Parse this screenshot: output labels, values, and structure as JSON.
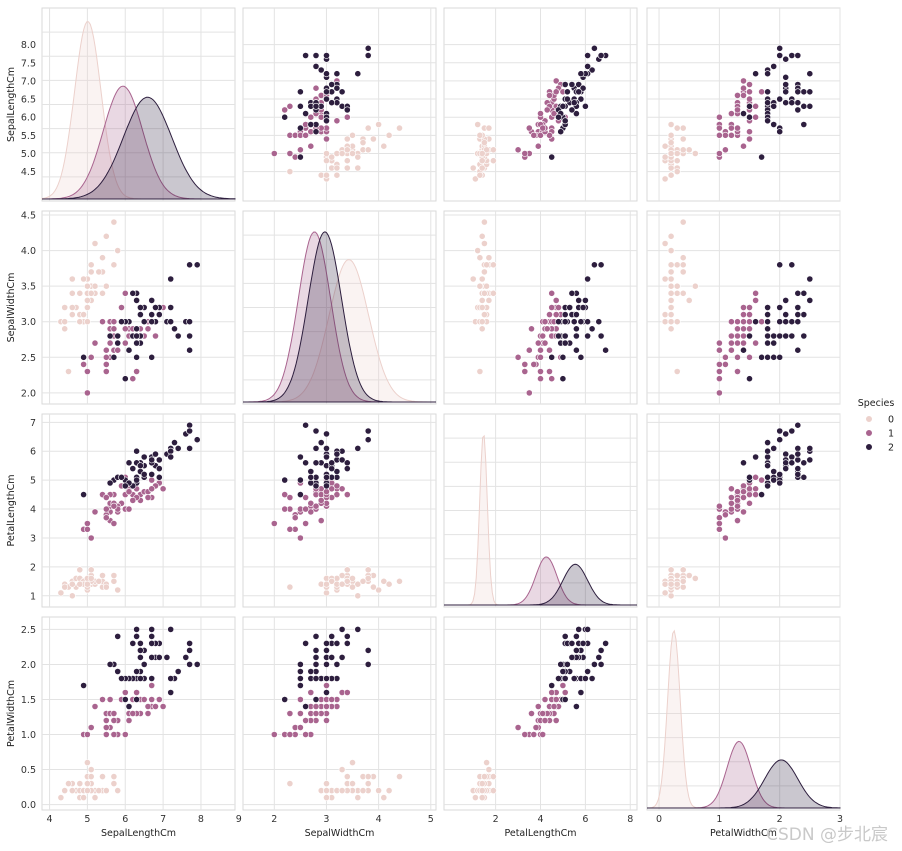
{
  "chart_data": {
    "type": "pairplot",
    "variables": [
      "SepalLengthCm",
      "SepalWidthCm",
      "PetalLengthCm",
      "PetalWidthCm"
    ],
    "diagonal": "kde",
    "offdiagonal": "scatter",
    "grid": true,
    "legend": {
      "title": "Species",
      "placement": "right",
      "entries": [
        "0",
        "1",
        "2"
      ]
    },
    "colors": {
      "0": "#ecd1cc",
      "1": "#a9648f",
      "2": "#2d1e3e"
    },
    "axes": {
      "SepalLengthCm": {
        "range": [
          3.8,
          8.9
        ],
        "ticks": [
          "4.5",
          "5.0",
          "5.5",
          "6.0",
          "6.5",
          "7.0",
          "7.5",
          "8.0"
        ],
        "tick_values": [
          4.5,
          5.0,
          5.5,
          6.0,
          6.5,
          7.0,
          7.5,
          8.0
        ],
        "xticks": [
          "4",
          "5",
          "6",
          "7",
          "8",
          "9"
        ],
        "xtick_values": [
          4,
          5,
          6,
          7,
          8,
          9
        ]
      },
      "SepalWidthCm": {
        "range": [
          1.9,
          4.5
        ],
        "ticks": [
          "2.0",
          "2.5",
          "3.0",
          "3.5",
          "4.0",
          "4.5"
        ],
        "tick_values": [
          2.0,
          2.5,
          3.0,
          3.5,
          4.0,
          4.5
        ],
        "xrange": [
          1.4,
          5.1
        ],
        "xticks": [
          "2",
          "3",
          "4",
          "5"
        ],
        "xtick_values": [
          2,
          3,
          4,
          5
        ]
      },
      "PetalLengthCm": {
        "range": [
          0.75,
          7.15
        ],
        "ticks": [
          "1",
          "2",
          "3",
          "4",
          "5",
          "6",
          "7"
        ],
        "tick_values": [
          1,
          2,
          3,
          4,
          5,
          6,
          7
        ],
        "xrange": [
          -0.3,
          8.3
        ],
        "xticks": [
          "2",
          "4",
          "6",
          "8"
        ],
        "xtick_values": [
          2,
          4,
          6,
          8
        ]
      },
      "PetalWidthCm": {
        "range": [
          -0.02,
          2.62
        ],
        "ticks": [
          "0.0",
          "0.5",
          "1.0",
          "1.5",
          "2.0",
          "2.5"
        ],
        "tick_values": [
          0.0,
          0.5,
          1.0,
          1.5,
          2.0,
          2.5
        ],
        "xrange": [
          -0.2,
          3.0
        ],
        "xticks": [
          "0",
          "1",
          "2",
          "3"
        ],
        "xtick_values": [
          0,
          1,
          2,
          3
        ]
      }
    },
    "kde": {
      "SepalLengthCm": [
        {
          "species": "0",
          "mean": 5.01,
          "sd": 0.35,
          "peak_rel": 0.96
        },
        {
          "species": "1",
          "mean": 5.94,
          "sd": 0.52,
          "peak_rel": 0.61
        },
        {
          "species": "2",
          "mean": 6.59,
          "sd": 0.64,
          "peak_rel": 0.55
        }
      ],
      "SepalWidthCm": [
        {
          "species": "0",
          "mean": 3.43,
          "sd": 0.38,
          "peak_rel": 0.77
        },
        {
          "species": "1",
          "mean": 2.77,
          "sd": 0.31,
          "peak_rel": 0.92
        },
        {
          "species": "2",
          "mean": 2.97,
          "sd": 0.32,
          "peak_rel": 0.92
        }
      ],
      "PetalLengthCm": [
        {
          "species": "0",
          "mean": 1.46,
          "sd": 0.17,
          "peak_rel": 0.93
        },
        {
          "species": "1",
          "mean": 4.26,
          "sd": 0.47,
          "peak_rel": 0.26
        },
        {
          "species": "2",
          "mean": 5.55,
          "sd": 0.55,
          "peak_rel": 0.22
        }
      ],
      "PetalWidthCm": [
        {
          "species": "0",
          "mean": 0.246,
          "sd": 0.105,
          "peak_rel": 0.96
        },
        {
          "species": "1",
          "mean": 1.326,
          "sd": 0.198,
          "peak_rel": 0.36
        },
        {
          "species": "2",
          "mean": 2.026,
          "sd": 0.274,
          "peak_rel": 0.26
        }
      ]
    },
    "points": {
      "0": [
        [
          5.1,
          3.5,
          1.4,
          0.2
        ],
        [
          4.9,
          3.0,
          1.4,
          0.2
        ],
        [
          4.7,
          3.2,
          1.3,
          0.2
        ],
        [
          4.6,
          3.1,
          1.5,
          0.2
        ],
        [
          5.0,
          3.6,
          1.4,
          0.2
        ],
        [
          5.4,
          3.9,
          1.7,
          0.4
        ],
        [
          4.6,
          3.4,
          1.4,
          0.3
        ],
        [
          5.0,
          3.4,
          1.5,
          0.2
        ],
        [
          4.4,
          2.9,
          1.4,
          0.2
        ],
        [
          4.9,
          3.1,
          1.5,
          0.1
        ],
        [
          5.4,
          3.7,
          1.5,
          0.2
        ],
        [
          4.8,
          3.4,
          1.6,
          0.2
        ],
        [
          4.8,
          3.0,
          1.4,
          0.1
        ],
        [
          4.3,
          3.0,
          1.1,
          0.1
        ],
        [
          5.8,
          4.0,
          1.2,
          0.2
        ],
        [
          5.7,
          4.4,
          1.5,
          0.4
        ],
        [
          5.4,
          3.9,
          1.3,
          0.4
        ],
        [
          5.1,
          3.5,
          1.4,
          0.3
        ],
        [
          5.7,
          3.8,
          1.7,
          0.3
        ],
        [
          5.1,
          3.8,
          1.5,
          0.3
        ],
        [
          5.4,
          3.4,
          1.7,
          0.2
        ],
        [
          5.1,
          3.7,
          1.5,
          0.4
        ],
        [
          4.6,
          3.6,
          1.0,
          0.2
        ],
        [
          5.1,
          3.3,
          1.7,
          0.5
        ],
        [
          4.8,
          3.4,
          1.9,
          0.2
        ],
        [
          5.0,
          3.0,
          1.6,
          0.2
        ],
        [
          5.0,
          3.4,
          1.6,
          0.4
        ],
        [
          5.2,
          3.5,
          1.5,
          0.2
        ],
        [
          5.2,
          3.4,
          1.4,
          0.2
        ],
        [
          4.7,
          3.2,
          1.6,
          0.2
        ],
        [
          4.8,
          3.1,
          1.6,
          0.2
        ],
        [
          5.4,
          3.4,
          1.5,
          0.4
        ],
        [
          5.2,
          4.1,
          1.5,
          0.1
        ],
        [
          5.5,
          4.2,
          1.4,
          0.2
        ],
        [
          4.9,
          3.1,
          1.5,
          0.2
        ],
        [
          5.0,
          3.2,
          1.2,
          0.2
        ],
        [
          5.5,
          3.5,
          1.3,
          0.2
        ],
        [
          4.9,
          3.6,
          1.4,
          0.1
        ],
        [
          4.4,
          3.0,
          1.3,
          0.2
        ],
        [
          5.1,
          3.4,
          1.5,
          0.2
        ],
        [
          5.0,
          3.5,
          1.3,
          0.3
        ],
        [
          4.5,
          2.3,
          1.3,
          0.3
        ],
        [
          4.4,
          3.2,
          1.3,
          0.2
        ],
        [
          5.0,
          3.5,
          1.6,
          0.6
        ],
        [
          5.1,
          3.8,
          1.9,
          0.4
        ],
        [
          4.8,
          3.0,
          1.4,
          0.3
        ],
        [
          5.1,
          3.8,
          1.6,
          0.2
        ],
        [
          4.6,
          3.2,
          1.4,
          0.2
        ],
        [
          5.3,
          3.7,
          1.5,
          0.2
        ],
        [
          5.0,
          3.3,
          1.4,
          0.2
        ]
      ],
      "1": [
        [
          7.0,
          3.2,
          4.7,
          1.4
        ],
        [
          6.4,
          3.2,
          4.5,
          1.5
        ],
        [
          6.9,
          3.1,
          4.9,
          1.5
        ],
        [
          5.5,
          2.3,
          4.0,
          1.3
        ],
        [
          6.5,
          2.8,
          4.6,
          1.5
        ],
        [
          5.7,
          2.8,
          4.5,
          1.3
        ],
        [
          6.3,
          3.3,
          4.7,
          1.6
        ],
        [
          4.9,
          2.4,
          3.3,
          1.0
        ],
        [
          6.6,
          2.9,
          4.6,
          1.3
        ],
        [
          5.2,
          2.7,
          3.9,
          1.4
        ],
        [
          5.0,
          2.0,
          3.5,
          1.0
        ],
        [
          5.9,
          3.0,
          4.2,
          1.5
        ],
        [
          6.0,
          2.2,
          4.0,
          1.0
        ],
        [
          6.1,
          2.9,
          4.7,
          1.4
        ],
        [
          5.6,
          2.9,
          3.6,
          1.3
        ],
        [
          6.7,
          3.1,
          4.4,
          1.4
        ],
        [
          5.6,
          3.0,
          4.5,
          1.5
        ],
        [
          5.8,
          2.7,
          4.1,
          1.0
        ],
        [
          6.2,
          2.2,
          4.5,
          1.5
        ],
        [
          5.6,
          2.5,
          3.9,
          1.1
        ],
        [
          5.9,
          3.2,
          4.8,
          1.8
        ],
        [
          6.1,
          2.8,
          4.0,
          1.3
        ],
        [
          6.3,
          2.5,
          4.9,
          1.5
        ],
        [
          6.1,
          2.8,
          4.7,
          1.2
        ],
        [
          6.4,
          2.9,
          4.3,
          1.3
        ],
        [
          6.6,
          3.0,
          4.4,
          1.4
        ],
        [
          6.8,
          2.8,
          4.8,
          1.4
        ],
        [
          6.7,
          3.0,
          5.0,
          1.7
        ],
        [
          6.0,
          2.9,
          4.5,
          1.5
        ],
        [
          5.7,
          2.6,
          3.5,
          1.0
        ],
        [
          5.5,
          2.4,
          3.8,
          1.1
        ],
        [
          5.5,
          2.4,
          3.7,
          1.0
        ],
        [
          5.8,
          2.7,
          3.9,
          1.2
        ],
        [
          6.0,
          2.7,
          5.1,
          1.6
        ],
        [
          5.4,
          3.0,
          4.5,
          1.5
        ],
        [
          6.0,
          3.4,
          4.5,
          1.6
        ],
        [
          6.7,
          3.1,
          4.7,
          1.5
        ],
        [
          6.3,
          2.3,
          4.4,
          1.3
        ],
        [
          5.6,
          3.0,
          4.1,
          1.3
        ],
        [
          5.5,
          2.5,
          4.0,
          1.3
        ],
        [
          5.5,
          2.6,
          4.4,
          1.2
        ],
        [
          6.1,
          3.0,
          4.6,
          1.4
        ],
        [
          5.8,
          2.6,
          4.0,
          1.2
        ],
        [
          5.0,
          2.3,
          3.3,
          1.0
        ],
        [
          5.6,
          2.7,
          4.2,
          1.3
        ],
        [
          5.7,
          3.0,
          4.2,
          1.2
        ],
        [
          5.7,
          2.9,
          4.2,
          1.3
        ],
        [
          6.2,
          2.9,
          4.3,
          1.3
        ],
        [
          5.1,
          2.5,
          3.0,
          1.1
        ],
        [
          5.7,
          2.8,
          4.1,
          1.3
        ]
      ],
      "2": [
        [
          6.3,
          3.3,
          6.0,
          2.5
        ],
        [
          5.8,
          2.7,
          5.1,
          1.9
        ],
        [
          7.1,
          3.0,
          5.9,
          2.1
        ],
        [
          6.3,
          2.9,
          5.6,
          1.8
        ],
        [
          6.5,
          3.0,
          5.8,
          2.2
        ],
        [
          7.6,
          3.0,
          6.6,
          2.1
        ],
        [
          4.9,
          2.5,
          4.5,
          1.7
        ],
        [
          7.3,
          2.9,
          6.3,
          1.8
        ],
        [
          6.7,
          2.5,
          5.8,
          1.8
        ],
        [
          7.2,
          3.6,
          6.1,
          2.5
        ],
        [
          6.5,
          3.2,
          5.1,
          2.0
        ],
        [
          6.4,
          2.7,
          5.3,
          1.9
        ],
        [
          6.8,
          3.0,
          5.5,
          2.1
        ],
        [
          5.7,
          2.5,
          5.0,
          2.0
        ],
        [
          5.8,
          2.8,
          5.1,
          2.4
        ],
        [
          6.4,
          3.2,
          5.3,
          2.3
        ],
        [
          6.5,
          3.0,
          5.5,
          1.8
        ],
        [
          7.7,
          3.8,
          6.7,
          2.2
        ],
        [
          7.7,
          2.6,
          6.9,
          2.3
        ],
        [
          6.0,
          2.2,
          5.0,
          1.5
        ],
        [
          6.9,
          3.2,
          5.7,
          2.3
        ],
        [
          5.6,
          2.8,
          4.9,
          2.0
        ],
        [
          7.7,
          2.8,
          6.7,
          2.0
        ],
        [
          6.3,
          2.7,
          4.9,
          1.8
        ],
        [
          6.7,
          3.3,
          5.7,
          2.1
        ],
        [
          7.2,
          3.2,
          6.0,
          1.8
        ],
        [
          6.2,
          2.8,
          4.8,
          1.8
        ],
        [
          6.1,
          3.0,
          4.9,
          1.8
        ],
        [
          6.4,
          2.8,
          5.6,
          2.1
        ],
        [
          7.2,
          3.0,
          5.8,
          1.6
        ],
        [
          7.4,
          2.8,
          6.1,
          1.9
        ],
        [
          7.9,
          3.8,
          6.4,
          2.0
        ],
        [
          6.4,
          2.8,
          5.6,
          2.2
        ],
        [
          6.3,
          2.8,
          5.1,
          1.5
        ],
        [
          6.1,
          2.6,
          5.6,
          1.4
        ],
        [
          7.7,
          3.0,
          6.1,
          2.3
        ],
        [
          6.3,
          3.4,
          5.6,
          2.4
        ],
        [
          6.4,
          3.1,
          5.5,
          1.8
        ],
        [
          6.0,
          3.0,
          4.8,
          1.8
        ],
        [
          6.9,
          3.1,
          5.4,
          2.1
        ],
        [
          6.7,
          3.1,
          5.6,
          2.4
        ],
        [
          6.9,
          3.1,
          5.1,
          2.3
        ],
        [
          5.8,
          2.7,
          5.1,
          1.9
        ],
        [
          6.8,
          3.2,
          5.9,
          2.3
        ],
        [
          6.7,
          3.3,
          5.7,
          2.5
        ],
        [
          6.7,
          3.0,
          5.2,
          2.3
        ],
        [
          6.3,
          2.5,
          5.0,
          1.9
        ],
        [
          6.5,
          3.0,
          5.2,
          2.0
        ],
        [
          6.2,
          3.4,
          5.4,
          2.3
        ],
        [
          5.9,
          3.0,
          5.1,
          1.8
        ]
      ]
    }
  },
  "watermark": "CSDN @步北宸"
}
